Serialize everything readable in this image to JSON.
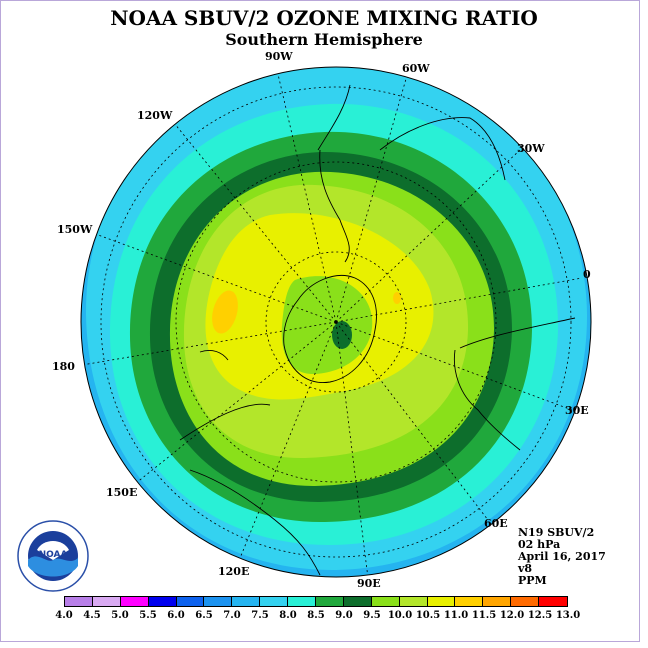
{
  "title": "NOAA SBUV/2 OZONE MIXING RATIO",
  "subtitle": "Southern Hemisphere",
  "info_lines": [
    "N19 SBUV/2",
    "02 hPa",
    "April 16, 2017",
    "v8",
    "PPM"
  ],
  "logo_text": "NOAA",
  "longitude_labels": [
    "90W",
    "60W",
    "30W",
    "0",
    "30E",
    "60E",
    "90E",
    "120E",
    "150E",
    "180",
    "150W",
    "120W"
  ],
  "colorbar": {
    "ticks": [
      "4.0",
      "4.5",
      "5.0",
      "5.5",
      "6.0",
      "6.5",
      "7.0",
      "7.5",
      "8.0",
      "8.5",
      "9.0",
      "9.5",
      "10.0",
      "10.5",
      "11.0",
      "11.5",
      "12.0",
      "12.5",
      "13.0"
    ],
    "colors": [
      "#b87fe8",
      "#d9aaf2",
      "#ff00ff",
      "#0000ee",
      "#0d62ee",
      "#1c93f0",
      "#25b4f0",
      "#34d2f0",
      "#29f0d6",
      "#20a83c",
      "#0d6e2c",
      "#8ae01a",
      "#b3e62a",
      "#e8f000",
      "#ffd000",
      "#ffa500",
      "#ff6a00",
      "#ff0000",
      "#a06a50"
    ]
  }
}
